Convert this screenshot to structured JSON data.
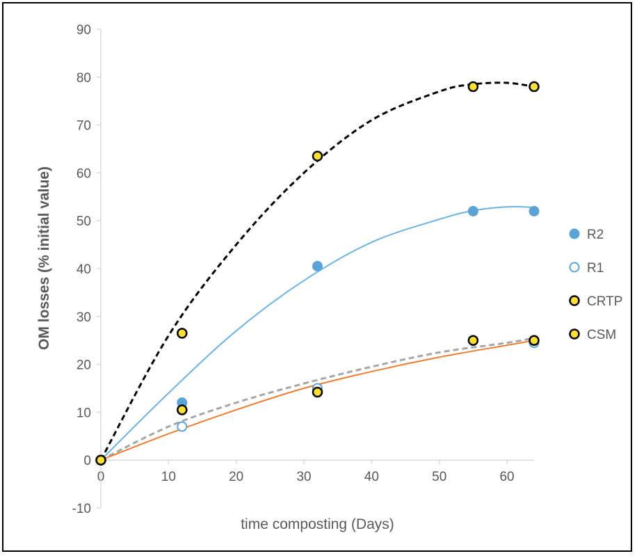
{
  "chart_data": {
    "type": "scatter",
    "title": "",
    "xlabel": "time composting (Days)",
    "ylabel": "OM losses (% initial value)",
    "xlim": [
      0,
      64
    ],
    "ylim": [
      -10,
      90
    ],
    "xticks": [
      0,
      10,
      20,
      30,
      40,
      50,
      60
    ],
    "yticks": [
      -10,
      0,
      10,
      20,
      30,
      40,
      50,
      60,
      70,
      80,
      90
    ],
    "grid": false,
    "legend_position": "right",
    "series": [
      {
        "name": "R2",
        "marker": "filled-circle",
        "color": "#5BA3D6",
        "x": [
          0,
          12,
          32,
          55,
          64
        ],
        "y": [
          0,
          12,
          40.5,
          52,
          52
        ],
        "trend_color": "#6CB2E2",
        "trend_style": "solid",
        "trend_x": [
          0,
          10,
          20,
          30,
          40,
          50,
          55,
          60,
          64
        ],
        "trend_y": [
          0,
          14,
          27,
          37.5,
          45.5,
          50.3,
          52.1,
          52.9,
          52.8
        ]
      },
      {
        "name": "R1",
        "marker": "hollow-circle",
        "color": "#5BA3D6",
        "x": [
          0,
          12,
          32,
          55,
          64
        ],
        "y": [
          0,
          7,
          15,
          25,
          24.5
        ],
        "trend_color": "#A6A6A6",
        "trend_style": "dashed",
        "trend_x": [
          0,
          10,
          20,
          30,
          40,
          50,
          60,
          64
        ],
        "trend_y": [
          0,
          7,
          12,
          16,
          19.5,
          22.5,
          24.5,
          25.5
        ]
      },
      {
        "name": "CRTP",
        "marker": "yellow-black-circle",
        "color": "#FFE033",
        "x": [
          0,
          12,
          32,
          55,
          64
        ],
        "y": [
          0,
          26.5,
          63.5,
          78,
          78
        ],
        "trend_color": "#000000",
        "trend_style": "dashed",
        "trend_x": [
          0,
          10,
          20,
          30,
          40,
          50,
          55,
          60,
          64
        ],
        "trend_y": [
          0,
          26,
          45,
          60,
          71,
          77,
          78.5,
          78.8,
          78
        ]
      },
      {
        "name": "CSM",
        "marker": "yellow-black-circle",
        "color": "#FFE033",
        "x": [
          0,
          12,
          32,
          55,
          64
        ],
        "y": [
          0,
          10.5,
          14.2,
          25,
          25
        ],
        "trend_color": "#ED7D31",
        "trend_style": "solid",
        "trend_x": [
          0,
          10,
          20,
          30,
          40,
          50,
          60,
          64
        ],
        "trend_y": [
          0,
          5.5,
          10.5,
          15,
          18.5,
          21.5,
          24,
          25
        ]
      }
    ]
  }
}
